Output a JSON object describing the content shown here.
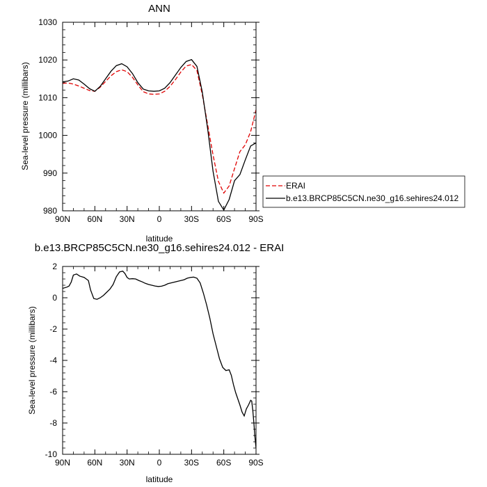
{
  "chart_data": [
    {
      "type": "line",
      "title": "ANN",
      "xlabel": "latitude",
      "ylabel": "Sea-level pressure (millibars)",
      "xlim": [
        90,
        -90
      ],
      "ylim": [
        980,
        1030
      ],
      "x_ticks": [
        90,
        60,
        30,
        0,
        -30,
        -60,
        -90
      ],
      "x_tick_labels": [
        "90N",
        "60N",
        "30N",
        "0",
        "30S",
        "60S",
        "90S"
      ],
      "y_ticks": [
        980,
        990,
        1000,
        1010,
        1020,
        1030
      ],
      "y_tick_labels": [
        "980",
        "990",
        "1000",
        "1010",
        "1020",
        "1030"
      ],
      "legend_position": "outside-right",
      "series": [
        {
          "name": "ERAI",
          "color": "#e00000",
          "dash": "dashed",
          "x": [
            90,
            85,
            80,
            75,
            70,
            65,
            60,
            55,
            50,
            45,
            40,
            35,
            30,
            25,
            20,
            15,
            10,
            5,
            0,
            -5,
            -10,
            -15,
            -20,
            -25,
            -30,
            -35,
            -40,
            -45,
            -50,
            -55,
            -60,
            -65,
            -70,
            -75,
            -80,
            -85,
            -90
          ],
          "y": [
            1013.8,
            1013.9,
            1013.6,
            1013.1,
            1012.5,
            1011.9,
            1011.7,
            1012.8,
            1014.3,
            1015.8,
            1016.9,
            1017.4,
            1016.9,
            1015.4,
            1013.4,
            1011.6,
            1011.0,
            1010.9,
            1011.0,
            1011.7,
            1013.0,
            1014.8,
            1016.8,
            1018.4,
            1018.8,
            1017.2,
            1010.8,
            1002.8,
            994.8,
            987.8,
            984.7,
            986.6,
            991.2,
            995.7,
            997.5,
            1001.0,
            1006.8
          ]
        },
        {
          "name": "b.e13.BRCP85C5CN.ne30_g16.sehires24.012",
          "color": "#000000",
          "dash": "solid",
          "x": [
            90,
            85,
            80,
            75,
            70,
            65,
            60,
            55,
            50,
            45,
            40,
            35,
            30,
            25,
            20,
            15,
            10,
            5,
            0,
            -5,
            -10,
            -15,
            -20,
            -25,
            -30,
            -35,
            -40,
            -45,
            -50,
            -55,
            -60,
            -65,
            -70,
            -75,
            -80,
            -85,
            -90
          ],
          "y": [
            1014.2,
            1014.4,
            1015.0,
            1014.7,
            1013.6,
            1012.4,
            1011.7,
            1013.0,
            1015.0,
            1017.0,
            1018.5,
            1019.0,
            1018.2,
            1016.4,
            1014.0,
            1012.3,
            1011.8,
            1011.7,
            1011.8,
            1012.5,
            1014.0,
            1016.0,
            1018.0,
            1019.6,
            1020.1,
            1018.3,
            1011.5,
            1001.7,
            990.5,
            982.5,
            980.2,
            983.0,
            988.0,
            989.6,
            993.5,
            997.2,
            998.0
          ]
        }
      ]
    },
    {
      "type": "line",
      "title": "b.e13.BRCP85C5CN.ne30_g16.sehires24.012 - ERAI",
      "xlabel": "latitude",
      "ylabel": "Sea-level pressure (millibars)",
      "xlim": [
        90,
        -90
      ],
      "ylim": [
        -10,
        2
      ],
      "x_ticks": [
        90,
        60,
        30,
        0,
        -30,
        -60,
        -90
      ],
      "x_tick_labels": [
        "90N",
        "60N",
        "30N",
        "0",
        "30S",
        "60S",
        "90S"
      ],
      "y_ticks": [
        -10,
        -8,
        -6,
        -4,
        -2,
        0,
        2
      ],
      "y_tick_labels": [
        "-10",
        "-8",
        "-6",
        "-4",
        "-2",
        "0",
        "2"
      ],
      "series": [
        {
          "color": "#000000",
          "dash": "solid",
          "x": [
            90,
            86,
            84,
            82,
            80,
            77,
            74,
            70,
            66,
            64,
            61,
            58,
            55,
            52,
            49,
            46,
            43,
            40,
            37,
            34,
            32,
            30,
            28,
            25,
            22,
            19,
            16,
            13,
            10,
            7,
            4,
            1,
            -2,
            -5,
            -8,
            -11,
            -14,
            -17,
            -20,
            -23,
            -26,
            -29,
            -32,
            -35,
            -38,
            -41,
            -44,
            -47,
            -50,
            -53,
            -56,
            -59,
            -62,
            -65,
            -67,
            -69,
            -71,
            -73,
            -75,
            -77,
            -79,
            -81,
            -83,
            -85,
            -86,
            -87,
            -88,
            -89,
            -90
          ],
          "y": [
            0.6,
            0.68,
            0.75,
            1.0,
            1.45,
            1.52,
            1.38,
            1.3,
            1.1,
            0.5,
            -0.05,
            -0.1,
            0.0,
            0.15,
            0.35,
            0.55,
            0.85,
            1.35,
            1.65,
            1.7,
            1.55,
            1.3,
            1.2,
            1.22,
            1.2,
            1.1,
            1.02,
            0.92,
            0.85,
            0.8,
            0.75,
            0.72,
            0.74,
            0.8,
            0.9,
            0.95,
            1.0,
            1.05,
            1.1,
            1.15,
            1.25,
            1.3,
            1.32,
            1.25,
            0.95,
            0.3,
            -0.45,
            -1.3,
            -2.3,
            -3.1,
            -3.9,
            -4.45,
            -4.65,
            -4.6,
            -4.95,
            -5.55,
            -6.05,
            -6.45,
            -6.85,
            -7.3,
            -7.55,
            -7.1,
            -6.85,
            -6.55,
            -6.6,
            -7.2,
            -8.0,
            -8.9,
            -9.6
          ]
        }
      ]
    }
  ]
}
